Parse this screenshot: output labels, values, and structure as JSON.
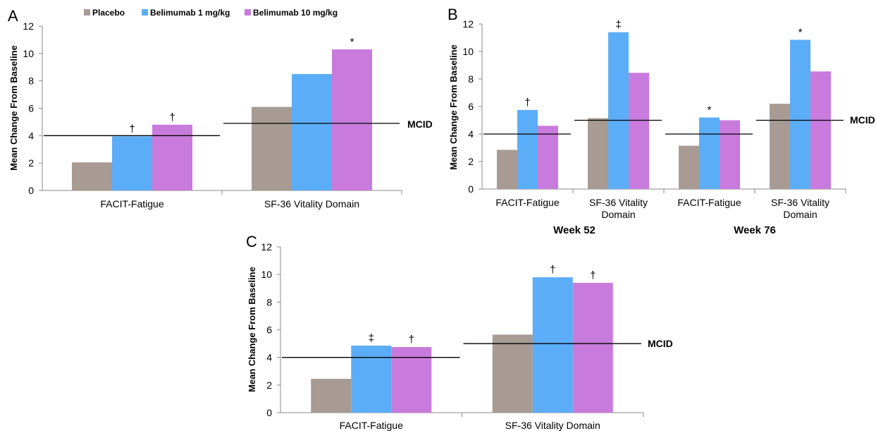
{
  "colors": {
    "placebo": "#a79b93",
    "bel1": "#5cadf7",
    "bel10": "#c87bdc"
  },
  "legend": [
    {
      "label": "Placebo",
      "color": "#a79b93"
    },
    {
      "label": "Belimumab 1 mg/kg",
      "color": "#5cadf7"
    },
    {
      "label": "Belimumab 10 mg/kg",
      "color": "#c87bdc"
    }
  ],
  "y_axis_label": "Mean Change From Baseline",
  "mcid_label": "MCID",
  "chart_data": [
    {
      "panel": "A",
      "type": "bar",
      "categories": [
        "FACIT-Fatigue",
        "SF-36 Vitality Domain"
      ],
      "series": [
        {
          "name": "Placebo",
          "values": [
            2.05,
            6.1
          ]
        },
        {
          "name": "Belimumab 1 mg/kg",
          "values": [
            3.95,
            8.5
          ]
        },
        {
          "name": "Belimumab 10 mg/kg",
          "values": [
            4.8,
            10.3
          ]
        }
      ],
      "significance": [
        [
          "",
          "†",
          "†"
        ],
        [
          "",
          "",
          "*"
        ]
      ],
      "mcid": [
        4,
        4.9
      ],
      "ylabel": "Mean Change From Baseline",
      "ylim": [
        0,
        12
      ],
      "yticks": [
        0,
        2,
        4,
        6,
        8,
        10,
        12
      ],
      "legend": "top"
    },
    {
      "panel": "B",
      "type": "bar",
      "categories": [
        "FACIT-Fatigue",
        "SF-36 Vitality Domain",
        "FACIT-Fatigue",
        "SF-36 Vitality Domain"
      ],
      "groups": [
        "Week 52",
        "Week 76"
      ],
      "series": [
        {
          "name": "Placebo",
          "values": [
            2.85,
            5.15,
            3.15,
            6.2
          ]
        },
        {
          "name": "Belimumab 1 mg/kg",
          "values": [
            5.75,
            11.4,
            5.2,
            10.85
          ]
        },
        {
          "name": "Belimumab 10 mg/kg",
          "values": [
            4.6,
            8.45,
            5.0,
            8.55
          ]
        }
      ],
      "significance": [
        [
          "",
          "†",
          ""
        ],
        [
          "",
          "‡",
          ""
        ],
        [
          "",
          "*",
          ""
        ],
        [
          "",
          "*",
          ""
        ]
      ],
      "mcid": [
        4,
        5,
        4,
        5
      ],
      "ylabel": "Mean Change From Baseline",
      "ylim": [
        0,
        12
      ],
      "yticks": [
        0,
        2,
        4,
        6,
        8,
        10,
        12
      ]
    },
    {
      "panel": "C",
      "type": "bar",
      "categories": [
        "FACIT-Fatigue",
        "SF-36 Vitality Domain"
      ],
      "series": [
        {
          "name": "Placebo",
          "values": [
            2.45,
            5.65
          ]
        },
        {
          "name": "Belimumab 1 mg/kg",
          "values": [
            4.85,
            9.8
          ]
        },
        {
          "name": "Belimumab 10 mg/kg",
          "values": [
            4.75,
            9.4
          ]
        }
      ],
      "significance": [
        [
          "",
          "‡",
          "†"
        ],
        [
          "",
          "†",
          "†"
        ]
      ],
      "mcid": [
        4,
        5
      ],
      "ylabel": "Mean Change From Baseline",
      "ylim": [
        0,
        12
      ],
      "yticks": [
        0,
        2,
        4,
        6,
        8,
        10,
        12
      ]
    }
  ]
}
